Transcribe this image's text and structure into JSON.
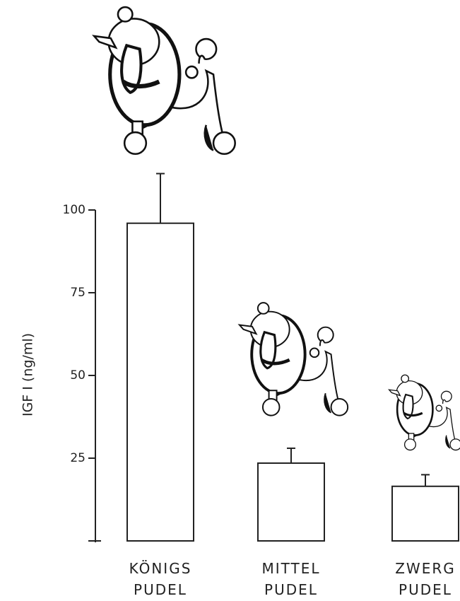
{
  "chart_data": {
    "type": "bar",
    "y_label": "IGF I (ng/ml)",
    "categories": [
      "KÖNIGS PUDEL",
      "MITTEL PUDEL",
      "ZWERG PUDEL"
    ],
    "values": [
      96,
      23.5,
      16.5
    ],
    "errors": [
      15,
      4.5,
      3.5
    ],
    "color": "#ffffff",
    "ylim": [
      0,
      100
    ],
    "yticks": [
      25,
      50,
      75,
      100
    ],
    "grid": false
  }
}
